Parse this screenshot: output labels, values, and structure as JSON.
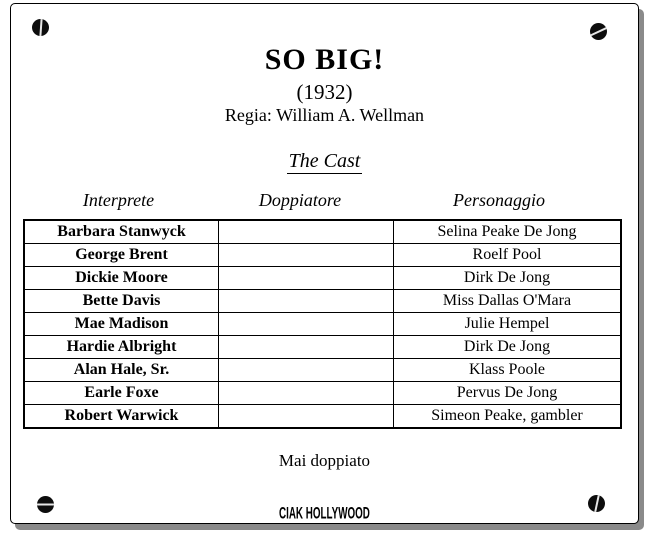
{
  "colors": {
    "page_background": "#ffffff",
    "text": "#000000",
    "border": "#000000",
    "shadow": "#8a8a8a"
  },
  "header": {
    "title": "SO BIG!",
    "year": "(1932)",
    "director": "Regia: William A. Wellman",
    "section_heading": "The Cast"
  },
  "cast_table": {
    "columns": [
      "Interprete",
      "Doppiatore",
      "Personaggio"
    ],
    "rows": [
      {
        "interprete": "Barbara Stanwyck",
        "doppiatore": "",
        "personaggio": "Selina Peake De Jong"
      },
      {
        "interprete": "George Brent",
        "doppiatore": "",
        "personaggio": "Roelf Pool"
      },
      {
        "interprete": "Dickie Moore",
        "doppiatore": "",
        "personaggio": "Dirk De Jong"
      },
      {
        "interprete": "Bette Davis",
        "doppiatore": "",
        "personaggio": "Miss Dallas O'Mara"
      },
      {
        "interprete": "Mae Madison",
        "doppiatore": "",
        "personaggio": "Julie Hempel"
      },
      {
        "interprete": "Hardie Albright",
        "doppiatore": "",
        "personaggio": "Dirk De Jong"
      },
      {
        "interprete": "Alan Hale, Sr.",
        "doppiatore": "",
        "personaggio": "Klass Poole"
      },
      {
        "interprete": "Earle Foxe",
        "doppiatore": "",
        "personaggio": "Pervus De Jong"
      },
      {
        "interprete": "Robert Warwick",
        "doppiatore": "",
        "personaggio": "Simeon Peake, gambler"
      }
    ]
  },
  "footer": {
    "note": "Mai doppiato",
    "logo": "CIAK HOLLYWOOD"
  },
  "icons": {
    "corner_screw": "black circle with white slot (screw head)"
  }
}
